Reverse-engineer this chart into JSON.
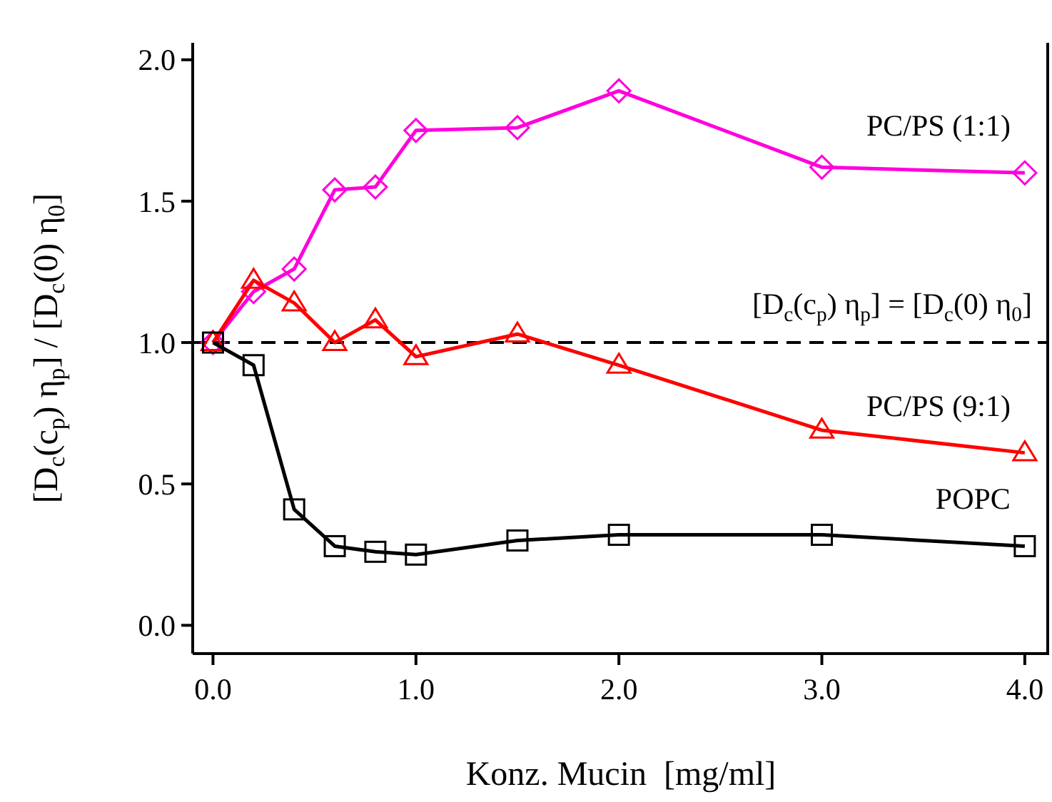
{
  "chart_data": {
    "type": "line",
    "xlabel": "Konz. Mucin  [mg/ml]",
    "ylabel": "[D$_{c}$(c$_{p}$) η$_{p}$] / [D$_{c}$(0) η$_{0}$]",
    "x": [
      0,
      0.2,
      0.4,
      0.6,
      0.8,
      1.0,
      1.5,
      2.0,
      3.0,
      4.0
    ],
    "series": [
      {
        "name": "PC/PS (1:1)",
        "color": "#ff00dd",
        "marker": "diamond",
        "values": [
          1.0,
          1.18,
          1.26,
          1.54,
          1.55,
          1.75,
          1.76,
          1.89,
          1.62,
          1.6
        ]
      },
      {
        "name": "PC/PS (9:1)",
        "color": "#ff0000",
        "marker": "triangle",
        "values": [
          1.0,
          1.22,
          1.14,
          1.0,
          1.08,
          0.95,
          1.03,
          0.92,
          0.69,
          0.61
        ]
      },
      {
        "name": "POPC",
        "color": "#000000",
        "marker": "square",
        "values": [
          1.0,
          0.92,
          0.41,
          0.28,
          0.26,
          0.25,
          0.3,
          0.32,
          0.32,
          0.28
        ]
      }
    ],
    "xlim": [
      -0.1,
      4.12
    ],
    "ylim": [
      -0.1,
      2.06
    ],
    "xticks": [
      {
        "value": 0,
        "label": "0.0"
      },
      {
        "value": 1,
        "label": "1.0"
      },
      {
        "value": 2,
        "label": "2.0"
      },
      {
        "value": 3,
        "label": "3.0"
      },
      {
        "value": 4,
        "label": "4.0"
      }
    ],
    "yticks": [
      {
        "value": 0,
        "label": "0.0"
      },
      {
        "value": 0.5,
        "label": "0.5"
      },
      {
        "value": 1,
        "label": "1.0"
      },
      {
        "value": 1.5,
        "label": "1.5"
      },
      {
        "value": 2,
        "label": "2.0"
      }
    ],
    "ref_lines": [
      {
        "axis": "y",
        "value": 1,
        "label": "[D$_{c}$(c$_{p}$) η$_{p}$] = [D$_{c}$(0) η$_{0}$]",
        "color": "#000000",
        "line_style": "dashed"
      }
    ],
    "grid": false,
    "line_style": "solid"
  }
}
